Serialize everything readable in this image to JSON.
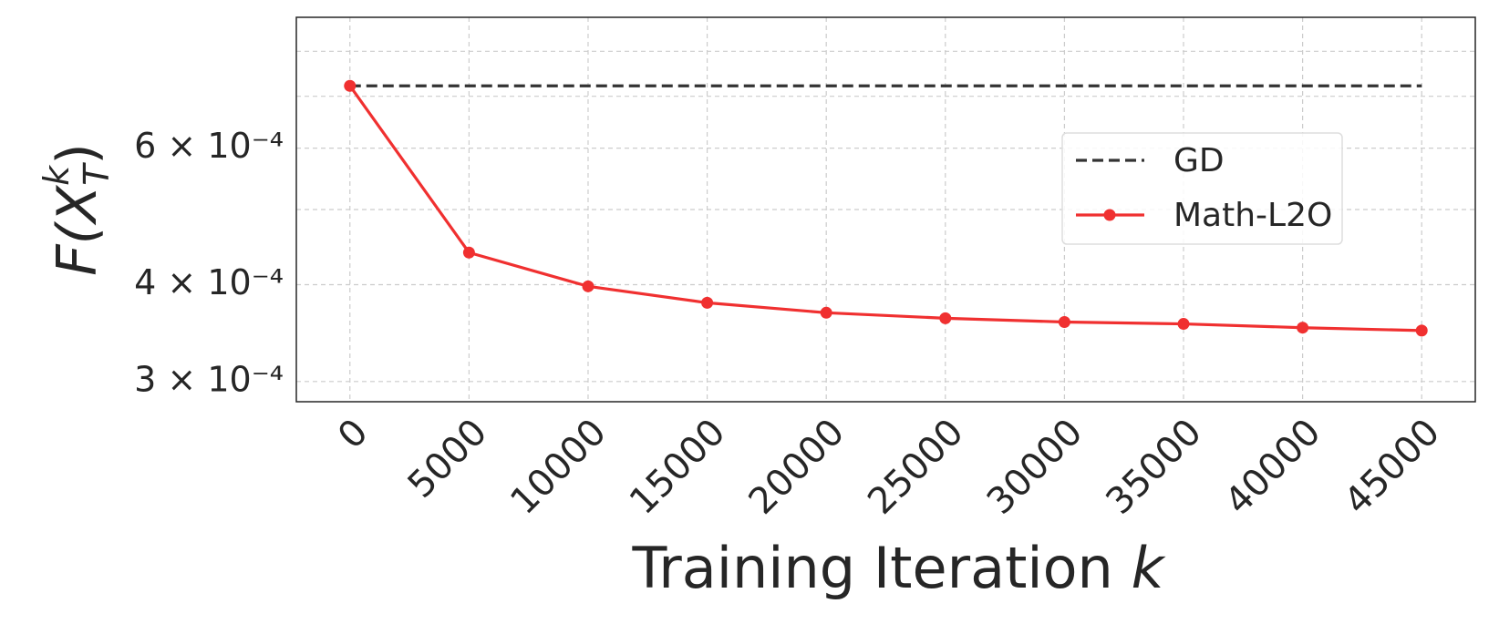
{
  "chart_data": {
    "type": "line",
    "xlabel": [
      "Training Iteration ",
      "k"
    ],
    "ylabel": [
      "F(X",
      "k",
      "T",
      ")"
    ],
    "x": [
      0,
      5000,
      10000,
      15000,
      20000,
      25000,
      30000,
      35000,
      40000,
      45000
    ],
    "series": [
      {
        "name": "GD",
        "color": "#333333",
        "dash": true,
        "marker": false,
        "values": [
          0.000722,
          0.000722,
          0.000722,
          0.000722,
          0.000722,
          0.000722,
          0.000722,
          0.000722,
          0.000722,
          0.000722
        ]
      },
      {
        "name": "Math-L2O",
        "color": "#f03030",
        "dash": false,
        "marker": true,
        "values": [
          0.000722,
          0.00044,
          0.000398,
          0.000379,
          0.000368,
          0.000362,
          0.000358,
          0.000356,
          0.000352,
          0.000349
        ]
      }
    ],
    "xlim": [
      -2250,
      47250
    ],
    "xticks": [
      0,
      5000,
      10000,
      15000,
      20000,
      25000,
      30000,
      35000,
      40000,
      45000
    ],
    "ylim": [
      0.0002825,
      0.000885
    ],
    "log_y": true,
    "yticks": [
      {
        "value": 0.0003,
        "label": "3 × 10⁻⁴"
      },
      {
        "value": 0.0004,
        "label": "4 × 10⁻⁴"
      },
      {
        "value": 0.0006,
        "label": "6 × 10⁻⁴"
      }
    ],
    "yminor_ticks": [
      0.0005,
      0.0007,
      0.0008
    ],
    "grid": true,
    "legend": "right"
  }
}
